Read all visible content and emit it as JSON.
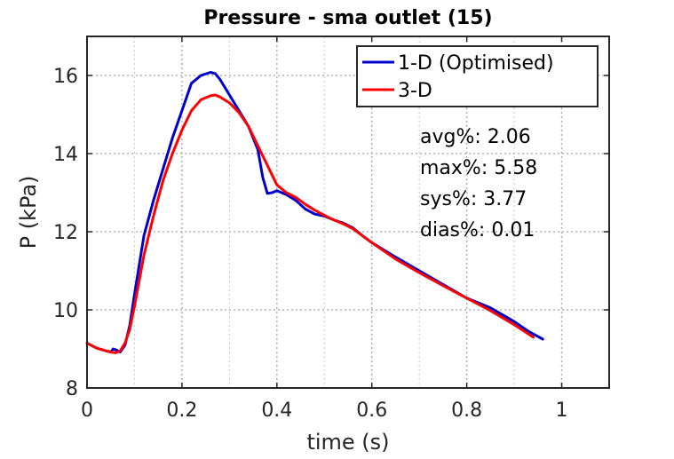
{
  "chart_data": {
    "type": "line",
    "title": "Pressure - sma outlet (15)",
    "xlabel": "time (s)",
    "ylabel": "P (kPa)",
    "xlim": [
      0,
      1.1
    ],
    "ylim": [
      8,
      17
    ],
    "xticks": [
      0,
      0.2,
      0.4,
      0.6,
      0.8,
      1
    ],
    "xtick_labels": [
      "0",
      "0.2",
      "0.4",
      "0.6",
      "0.8",
      "1"
    ],
    "yticks": [
      8,
      10,
      12,
      14,
      16
    ],
    "ytick_labels": [
      "8",
      "10",
      "12",
      "14",
      "16"
    ],
    "grid": true,
    "legend_position": "top-right",
    "series": [
      {
        "name": "1-D (Optimised)",
        "color": "#0000cc",
        "x": [
          0,
          0.02,
          0.04,
          0.05,
          0.055,
          0.06,
          0.07,
          0.08,
          0.09,
          0.1,
          0.12,
          0.14,
          0.16,
          0.18,
          0.2,
          0.22,
          0.24,
          0.26,
          0.27,
          0.28,
          0.3,
          0.32,
          0.34,
          0.36,
          0.37,
          0.38,
          0.39,
          0.4,
          0.42,
          0.44,
          0.46,
          0.48,
          0.5,
          0.52,
          0.54,
          0.56,
          0.58,
          0.6,
          0.65,
          0.7,
          0.75,
          0.8,
          0.85,
          0.9,
          0.93,
          0.96
        ],
        "y": [
          9.15,
          9.02,
          8.95,
          8.92,
          9.0,
          8.98,
          8.92,
          9.1,
          9.6,
          10.4,
          11.9,
          12.8,
          13.6,
          14.4,
          15.1,
          15.8,
          16.0,
          16.08,
          16.05,
          15.9,
          15.5,
          15.1,
          14.7,
          14.1,
          13.4,
          12.98,
          13.0,
          13.05,
          12.95,
          12.8,
          12.58,
          12.45,
          12.4,
          12.3,
          12.22,
          12.1,
          11.9,
          11.72,
          11.35,
          11.0,
          10.65,
          10.3,
          10.05,
          9.7,
          9.45,
          9.25
        ]
      },
      {
        "name": "3-D",
        "color": "#ff0000",
        "x": [
          0,
          0.02,
          0.04,
          0.05,
          0.06,
          0.07,
          0.08,
          0.09,
          0.1,
          0.12,
          0.14,
          0.16,
          0.18,
          0.2,
          0.22,
          0.24,
          0.26,
          0.27,
          0.28,
          0.3,
          0.32,
          0.34,
          0.36,
          0.38,
          0.4,
          0.42,
          0.44,
          0.46,
          0.48,
          0.5,
          0.52,
          0.54,
          0.56,
          0.58,
          0.6,
          0.65,
          0.7,
          0.75,
          0.8,
          0.85,
          0.9,
          0.94
        ],
        "y": [
          9.15,
          9.02,
          8.95,
          8.92,
          8.9,
          8.95,
          9.15,
          9.5,
          10.1,
          11.4,
          12.4,
          13.3,
          14.0,
          14.6,
          15.1,
          15.38,
          15.48,
          15.5,
          15.45,
          15.3,
          15.05,
          14.7,
          14.2,
          13.7,
          13.2,
          13.0,
          12.88,
          12.7,
          12.55,
          12.42,
          12.3,
          12.2,
          12.08,
          11.9,
          11.72,
          11.3,
          10.95,
          10.62,
          10.3,
          9.98,
          9.62,
          9.3
        ]
      }
    ],
    "annotations": [
      "avg%: 2.06",
      "max%: 5.58",
      "sys%: 3.77",
      "dias%: 0.01"
    ]
  }
}
